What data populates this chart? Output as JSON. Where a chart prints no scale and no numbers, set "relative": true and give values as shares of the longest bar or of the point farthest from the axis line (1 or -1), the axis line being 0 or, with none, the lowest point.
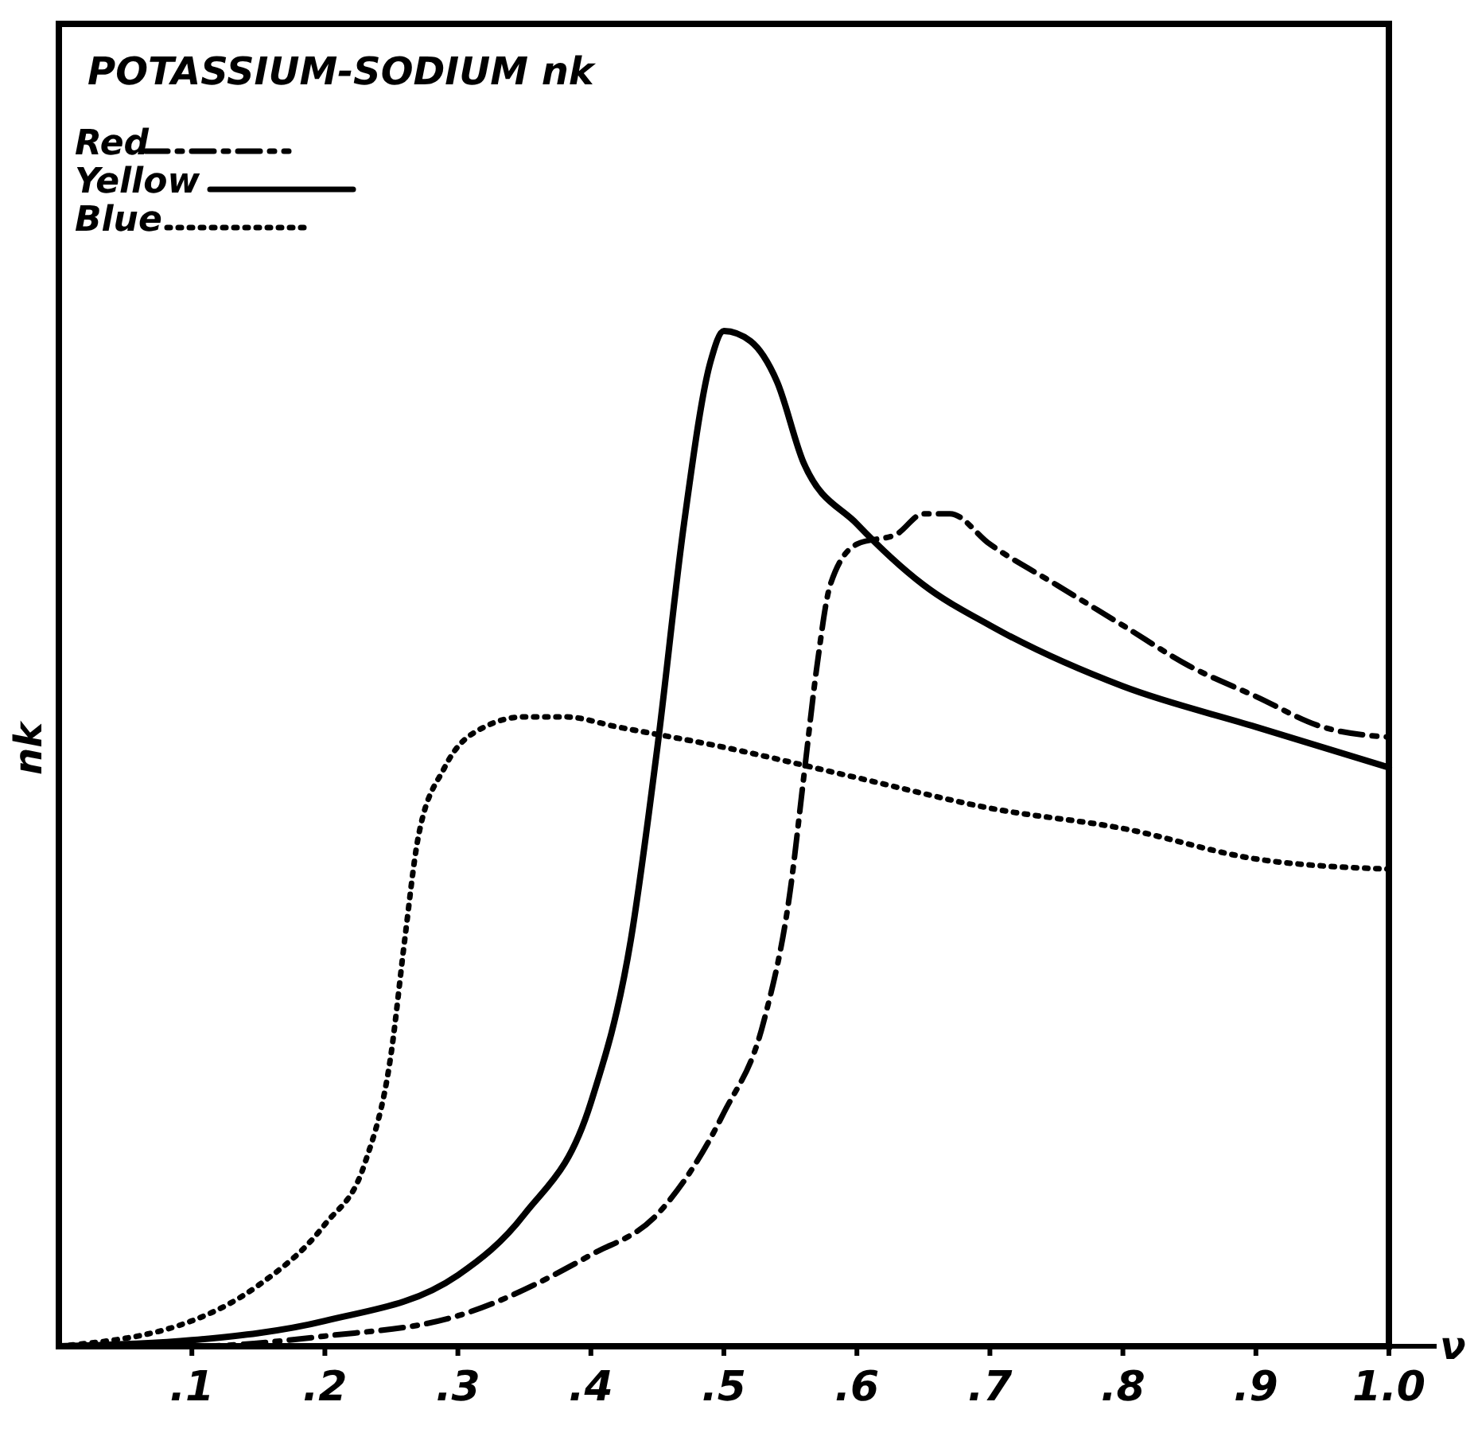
{
  "chart_data": {
    "type": "line",
    "title": "POTASSIUM-SODIUM nk",
    "xlabel": "ν",
    "ylabel": "nk",
    "relative": true,
    "xlim": [
      0,
      1.0
    ],
    "xticks": [
      {
        "value": 0.1,
        "label": ".1"
      },
      {
        "value": 0.2,
        "label": ".2"
      },
      {
        "value": 0.3,
        "label": ".3"
      },
      {
        "value": 0.4,
        "label": ".4"
      },
      {
        "value": 0.5,
        "label": ".5"
      },
      {
        "value": 0.6,
        "label": ".6"
      },
      {
        "value": 0.7,
        "label": ".7"
      },
      {
        "value": 0.8,
        "label": ".8"
      },
      {
        "value": 0.9,
        "label": ".9"
      },
      {
        "value": 1.0,
        "label": "1.0"
      }
    ],
    "legend": "top left",
    "grid": false,
    "marker": "none",
    "series": [
      {
        "name": "Red",
        "color": "#000000",
        "line_style": "dashed",
        "x": [
          0,
          0.1,
          0.2,
          0.3,
          0.4,
          0.45,
          0.5,
          0.53,
          0.55,
          0.56,
          0.57,
          0.58,
          0.6,
          0.63,
          0.65,
          0.67,
          0.7,
          0.75,
          0.8,
          0.85,
          0.9,
          0.95,
          1.0
        ],
        "values": [
          0,
          0,
          0.01,
          0.03,
          0.09,
          0.13,
          0.23,
          0.32,
          0.45,
          0.56,
          0.67,
          0.75,
          0.79,
          0.8,
          0.82,
          0.82,
          0.79,
          0.75,
          0.71,
          0.67,
          0.64,
          0.61,
          0.6
        ]
      },
      {
        "name": "Yellow",
        "color": "#000000",
        "line_style": "solid",
        "x": [
          0,
          0.1,
          0.2,
          0.3,
          0.35,
          0.4,
          0.43,
          0.45,
          0.47,
          0.49,
          0.5,
          0.52,
          0.54,
          0.56,
          0.6,
          0.65,
          0.7,
          0.8,
          0.9,
          1.0
        ],
        "values": [
          0,
          0.006,
          0.025,
          0.07,
          0.13,
          0.24,
          0.4,
          0.59,
          0.81,
          0.97,
          1,
          0.99,
          0.95,
          0.87,
          0.81,
          0.75,
          0.71,
          0.65,
          0.61,
          0.57
        ]
      },
      {
        "name": "Blue",
        "color": "#000000",
        "line_style": "dotted",
        "x": [
          0,
          0.1,
          0.15,
          0.2,
          0.23,
          0.25,
          0.26,
          0.27,
          0.29,
          0.32,
          0.35,
          0.38,
          0.42,
          0.5,
          0.6,
          0.7,
          0.8,
          0.9,
          1.0
        ],
        "values": [
          0,
          0.025,
          0.06,
          0.12,
          0.18,
          0.29,
          0.4,
          0.5,
          0.57,
          0.61,
          0.62,
          0.62,
          0.61,
          0.59,
          0.56,
          0.53,
          0.51,
          0.48,
          0.47
        ]
      }
    ]
  }
}
